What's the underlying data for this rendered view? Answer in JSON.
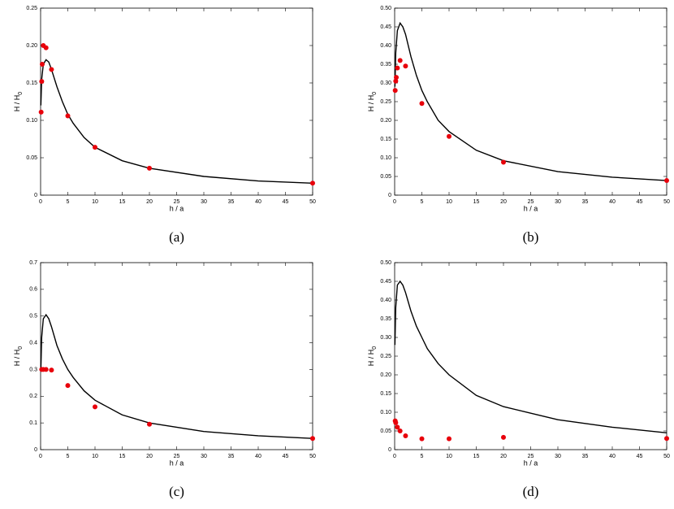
{
  "chart_data": [
    {
      "type": "line",
      "caption": "(a)",
      "xlabel": "h / a",
      "ylabel": "H / H",
      "ylabel_sub": "0",
      "xlim": [
        0,
        50
      ],
      "xticks": [
        0,
        5,
        10,
        15,
        20,
        25,
        30,
        35,
        40,
        45,
        50
      ],
      "ylim": [
        0,
        0.25
      ],
      "yticks": [
        0,
        0.05,
        {
          "value": 0.1,
          "label": "0.10"
        },
        0.15,
        {
          "value": 0.2,
          "label": "0.20"
        },
        0.25
      ],
      "series": [
        {
          "type": "line",
          "color": "#000000",
          "x": [
            0.05,
            0.2,
            0.5,
            1,
            1.5,
            2,
            3,
            4,
            5,
            6,
            8,
            10,
            15,
            20,
            30,
            40,
            50
          ],
          "values": [
            0.12,
            0.155,
            0.175,
            0.181,
            0.178,
            0.168,
            0.145,
            0.125,
            0.108,
            0.096,
            0.077,
            0.064,
            0.046,
            0.036,
            0.025,
            0.019,
            0.016
          ]
        },
        {
          "type": "scatter",
          "color": "#e8000b",
          "x": [
            0.1,
            0.2,
            0.3,
            0.5,
            1,
            2,
            5,
            10,
            20,
            50
          ],
          "values": [
            0.111,
            0.152,
            0.175,
            0.2,
            0.197,
            0.168,
            0.106,
            0.064,
            0.036,
            0.016
          ]
        }
      ]
    },
    {
      "type": "line",
      "caption": "(b)",
      "xlabel": "h / a",
      "ylabel": "H / H",
      "ylabel_sub": "0",
      "xlim": [
        0,
        50
      ],
      "xticks": [
        0,
        5,
        10,
        15,
        20,
        25,
        30,
        35,
        40,
        45,
        50
      ],
      "ylim": [
        0,
        0.5
      ],
      "yticks": [
        0,
        0.05,
        {
          "value": 0.1,
          "label": "0.10"
        },
        0.15,
        {
          "value": 0.2,
          "label": "0.20"
        },
        0.25,
        {
          "value": 0.3,
          "label": "0.30"
        },
        0.35,
        {
          "value": 0.4,
          "label": "0.40"
        },
        0.45,
        {
          "value": 0.5,
          "label": "0.50"
        }
      ],
      "series": [
        {
          "type": "line",
          "color": "#000000",
          "x": [
            0.05,
            0.2,
            0.5,
            1,
            1.5,
            2,
            3,
            4,
            5,
            6,
            8,
            10,
            15,
            20,
            30,
            40,
            50
          ],
          "values": [
            0.29,
            0.38,
            0.44,
            0.46,
            0.45,
            0.43,
            0.37,
            0.32,
            0.28,
            0.25,
            0.2,
            0.17,
            0.12,
            0.092,
            0.063,
            0.048,
            0.039
          ]
        },
        {
          "type": "scatter",
          "color": "#e8000b",
          "x": [
            0.1,
            0.2,
            0.3,
            0.5,
            1,
            2,
            5,
            10,
            20,
            50
          ],
          "values": [
            0.28,
            0.305,
            0.315,
            0.34,
            0.36,
            0.345,
            0.245,
            0.157,
            0.088,
            0.039
          ]
        }
      ]
    },
    {
      "type": "line",
      "caption": "(c)",
      "xlabel": "h / a",
      "ylabel": "H / H",
      "ylabel_sub": "0",
      "xlim": [
        0,
        50
      ],
      "xticks": [
        0,
        5,
        10,
        15,
        20,
        25,
        30,
        35,
        40,
        45,
        50
      ],
      "ylim": [
        0,
        0.7
      ],
      "yticks": [
        0,
        0.1,
        0.2,
        0.3,
        0.4,
        0.5,
        0.6,
        0.7
      ],
      "series": [
        {
          "type": "line",
          "color": "#000000",
          "x": [
            0.05,
            0.2,
            0.5,
            1,
            1.5,
            2,
            3,
            4,
            5,
            6,
            8,
            10,
            15,
            20,
            30,
            40,
            50
          ],
          "values": [
            0.3,
            0.42,
            0.49,
            0.505,
            0.49,
            0.46,
            0.39,
            0.34,
            0.3,
            0.27,
            0.22,
            0.185,
            0.13,
            0.1,
            0.068,
            0.052,
            0.042
          ]
        },
        {
          "type": "scatter",
          "color": "#e8000b",
          "x": [
            0.2,
            0.5,
            1,
            2,
            5,
            10,
            20,
            50
          ],
          "values": [
            0.3,
            0.3,
            0.3,
            0.298,
            0.24,
            0.16,
            0.095,
            0.042
          ]
        }
      ]
    },
    {
      "type": "line",
      "caption": "(d)",
      "xlabel": "h / a",
      "ylabel": "H / H",
      "ylabel_sub": "0",
      "xlim": [
        0,
        50
      ],
      "xticks": [
        0,
        5,
        10,
        15,
        20,
        25,
        30,
        35,
        40,
        45,
        50
      ],
      "ylim": [
        0,
        0.5
      ],
      "yticks": [
        0,
        0.05,
        {
          "value": 0.1,
          "label": "0.10"
        },
        0.15,
        {
          "value": 0.2,
          "label": "0.20"
        },
        0.25,
        {
          "value": 0.3,
          "label": "0.30"
        },
        0.35,
        {
          "value": 0.4,
          "label": "0.40"
        },
        0.45,
        {
          "value": 0.5,
          "label": "0.50"
        }
      ],
      "series": [
        {
          "type": "line",
          "color": "#000000",
          "x": [
            0.05,
            0.2,
            0.5,
            1,
            1.5,
            2,
            3,
            4,
            5,
            6,
            8,
            10,
            15,
            20,
            30,
            40,
            50
          ],
          "values": [
            0.28,
            0.38,
            0.44,
            0.45,
            0.44,
            0.42,
            0.37,
            0.33,
            0.3,
            0.27,
            0.23,
            0.2,
            0.145,
            0.115,
            0.08,
            0.06,
            0.045
          ]
        },
        {
          "type": "scatter",
          "color": "#e8000b",
          "x": [
            0.1,
            0.2,
            0.5,
            1,
            2,
            5,
            10,
            20,
            50
          ],
          "values": [
            0.077,
            0.072,
            0.06,
            0.05,
            0.037,
            0.029,
            0.029,
            0.033,
            0.03
          ]
        }
      ]
    }
  ]
}
